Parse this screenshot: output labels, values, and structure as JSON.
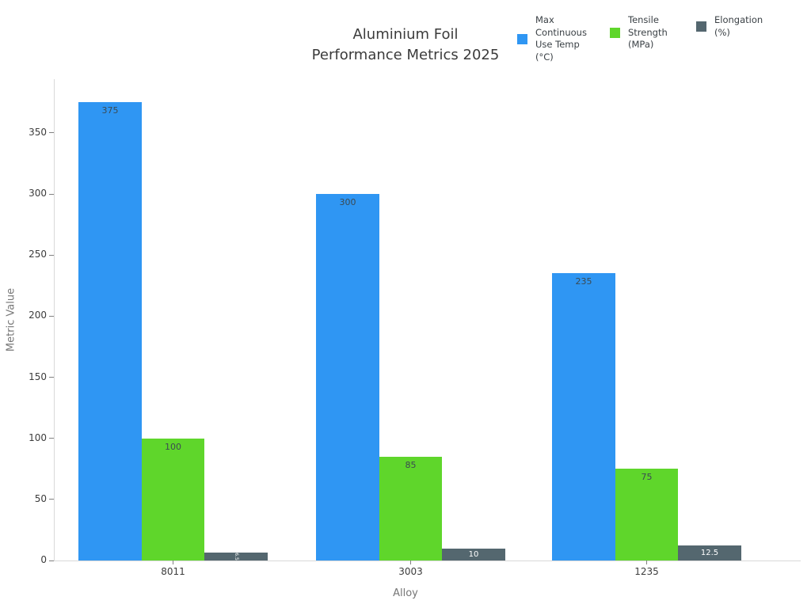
{
  "title": {
    "line1": "Aluminium Foil",
    "line2": "Performance Metrics 2025"
  },
  "legend": {
    "items": [
      {
        "label": "Max Continuous Use Temp (°C)",
        "color": "#2f96f3"
      },
      {
        "label": "Tensile Strength (MPa)",
        "color": "#5fd62b"
      },
      {
        "label": "Elongation (%)",
        "color": "#54676f"
      }
    ]
  },
  "axes": {
    "xlabel": "Alloy",
    "ylabel": "Metric Value"
  },
  "chart_data": {
    "type": "bar",
    "title": "Aluminium Foil Performance Metrics 2025",
    "categories": [
      "8011",
      "3003",
      "1235"
    ],
    "series": [
      {
        "name": "Max Continuous Use Temp (°C)",
        "color": "#2f96f3",
        "values": [
          375,
          300,
          235
        ],
        "labels": [
          "375",
          "300",
          "235"
        ],
        "label_placement": "inside-top",
        "label_color": "#3b4a52"
      },
      {
        "name": "Tensile Strength (MPa)",
        "color": "#5fd62b",
        "values": [
          100,
          85,
          75
        ],
        "labels": [
          "100",
          "85",
          "75"
        ],
        "label_placement": "inside-top",
        "label_color": "#3b4a52"
      },
      {
        "name": "Elongation (%)",
        "color": "#54676f",
        "values": [
          6.5,
          10,
          12.5
        ],
        "labels": [
          "6.5",
          "10",
          "12.5"
        ],
        "label_placement": "inside-center",
        "label_color": "#ffffff"
      }
    ],
    "xlabel": "Alloy",
    "ylabel": "Metric Value",
    "ylim": [
      0,
      394
    ],
    "yticks": [
      0,
      50,
      100,
      150,
      200,
      250,
      300,
      350
    ],
    "grid": false,
    "legend_position": "top-right",
    "background": "#ffffff"
  }
}
